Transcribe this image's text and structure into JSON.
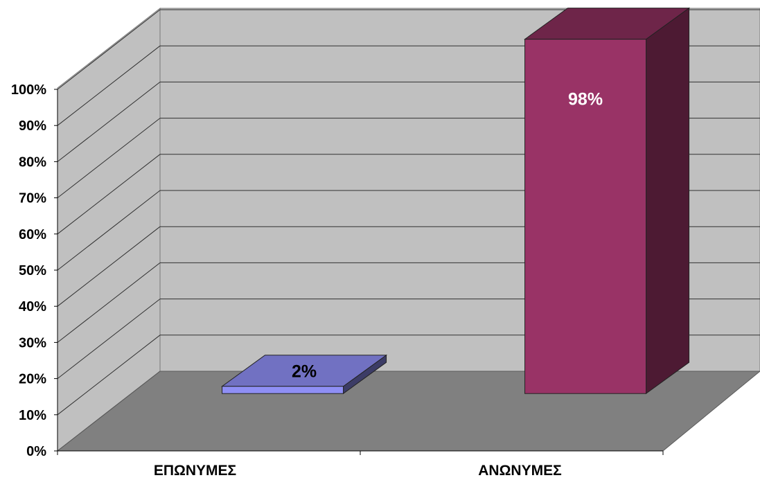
{
  "chart_data": {
    "type": "bar",
    "categories": [
      "ΕΠΩΝΥΜΕΣ",
      "ΑΝΩΝΥΜΕΣ"
    ],
    "values": [
      2,
      98
    ],
    "data_labels": [
      "2%",
      "98%"
    ],
    "yticks": [
      "0%",
      "10%",
      "20%",
      "30%",
      "40%",
      "50%",
      "60%",
      "70%",
      "80%",
      "90%",
      "100%"
    ],
    "ylim": [
      0,
      100
    ],
    "grid": true,
    "three_d": true,
    "colors": {
      "bar_1": "#7777cc",
      "bar_2": "#993366",
      "wall": "#c0c0c0",
      "floor": "#808080"
    }
  }
}
